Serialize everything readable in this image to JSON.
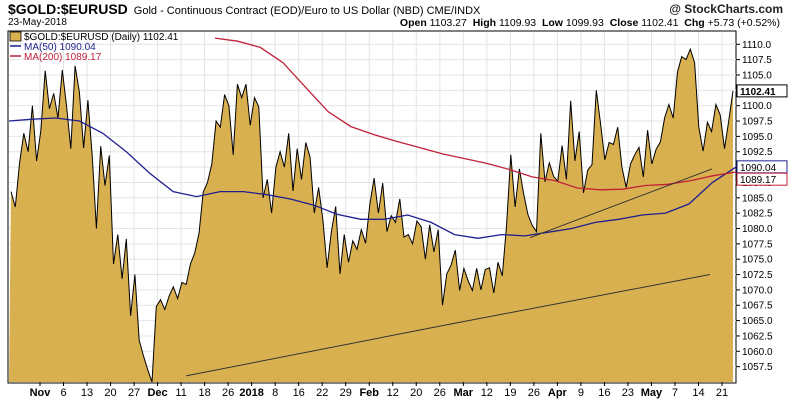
{
  "header": {
    "ticker": "$GOLD:$EURUSD",
    "subtitle": "Gold - Continuous Contract (EOD)/Euro to US Dollar (NBD)  CME/INDX",
    "brand": "@ StockCharts.com",
    "date": "23-May-2018",
    "open_label": "Open",
    "open": "1103.27",
    "high_label": "High",
    "high": "1109.93",
    "low_label": "Low",
    "low": "1099.93",
    "close_label": "Close",
    "close": "1102.41",
    "chg_label": "Chg",
    "chg": "+5.73 (+0.52%)"
  },
  "legend": {
    "main": "$GOLD:$EURUSD (Daily) 1102.41",
    "ma50": "MA(50) 1090.04",
    "ma200": "MA(200) 1089.17"
  },
  "colors": {
    "fill": "#d9b04f",
    "line": "#000000",
    "ma50": "#1f1f8f",
    "ma200": "#c0203a",
    "grid": "#e4e4e4"
  },
  "last_price_tag": "1102.41",
  "ma50_tag": "1090.04",
  "ma200_tag": "1089.17",
  "chart_data": {
    "type": "area",
    "ylim": [
      1055,
      1112
    ],
    "y_ticks": [
      "1110.0",
      "1107.5",
      "1105.0",
      "1102.5",
      "1100.0",
      "1097.5",
      "1095.0",
      "1092.5",
      "1090.0",
      "1087.5",
      "1085.0",
      "1082.5",
      "1080.0",
      "1077.5",
      "1075.0",
      "1072.5",
      "1070.0",
      "1067.5",
      "1065.0",
      "1062.5",
      "1060.0",
      "1057.5"
    ],
    "x_ticks": [
      "Nov",
      "6",
      "13",
      "20",
      "27",
      "Dec",
      "11",
      "18",
      "26",
      "2018",
      "8",
      "16",
      "22",
      "29",
      "Feb",
      "12",
      "20",
      "26",
      "Mar",
      "12",
      "19",
      "26",
      "Apr",
      "9",
      "16",
      "23",
      "May",
      "7",
      "14",
      "21"
    ],
    "x_ticks_bold": [
      "Nov",
      "Dec",
      "2018",
      "Feb",
      "Mar",
      "Apr",
      "May"
    ],
    "series": [
      {
        "name": "$GOLD:$EURUSD",
        "values": [
          1086.0,
          1083.5,
          1090.6,
          1095.5,
          1092.5,
          1100.0,
          1091.0,
          1096.0,
          1105.7,
          1099.5,
          1102.0,
          1098.0,
          1105.8,
          1100.0,
          1093.0,
          1106.5,
          1102.2,
          1093.1,
          1100.9,
          1091.9,
          1080.0,
          1093.4,
          1087.0,
          1091.9,
          1074.2,
          1079.0,
          1071.8,
          1078.3,
          1065.8,
          1072.5,
          1061.8,
          1059.3,
          1057.0,
          1055.0,
          1067.3,
          1068.4,
          1066.8,
          1069.0,
          1070.5,
          1068.6,
          1071.2,
          1070.9,
          1074.2,
          1076.0,
          1079.2,
          1085.9,
          1087.5,
          1090.5,
          1097.5,
          1096.5,
          1101.8,
          1100.0,
          1092.0,
          1103.5,
          1101.3,
          1103.5,
          1096.8,
          1101.3,
          1099.8,
          1085.0,
          1088.0,
          1082.5,
          1090.0,
          1092.5,
          1090.0,
          1095.5,
          1086.1,
          1093.0,
          1088.0,
          1094.0,
          1091.6,
          1082.5,
          1086.7,
          1081.4,
          1073.6,
          1079.5,
          1083.6,
          1072.6,
          1079.0,
          1074.5,
          1078.0,
          1076.6,
          1079.8,
          1077.6,
          1084.0,
          1088.2,
          1082.5,
          1087.4,
          1079.5,
          1082.1,
          1081.0,
          1084.8,
          1078.6,
          1079.0,
          1077.5,
          1081.2,
          1080.3,
          1075.0,
          1080.6,
          1076.2,
          1079.8,
          1067.5,
          1072.6,
          1074.0,
          1076.5,
          1069.9,
          1073.5,
          1071.5,
          1069.9,
          1073.5,
          1070.0,
          1073.3,
          1073.6,
          1069.5,
          1074.5,
          1072.3,
          1080.6,
          1092.0,
          1083.5,
          1089.7,
          1085.6,
          1082.3,
          1080.5,
          1079.5,
          1095.5,
          1087.6,
          1090.7,
          1088.5,
          1087.7,
          1093.5,
          1088.0,
          1100.8,
          1091.0,
          1095.8,
          1085.8,
          1089.5,
          1090.4,
          1102.5,
          1097.0,
          1091.2,
          1094.0,
          1093.7,
          1096.5,
          1090.0,
          1086.7,
          1090.5,
          1092.0,
          1093.2,
          1088.4,
          1096.0,
          1090.5,
          1092.9,
          1094.1,
          1098.0,
          1100.2,
          1098.0,
          1105.5,
          1108.0,
          1107.5,
          1109.2,
          1107.0,
          1096.5,
          1092.6,
          1097.3,
          1095.8,
          1100.2,
          1098.5,
          1093.0,
          1097.5,
          1102.4
        ]
      },
      {
        "name": "MA(50)",
        "values": [
          1097.5,
          1097.8,
          1098.0,
          1097.5,
          1095.5,
          1092.5,
          1089.0,
          1086.0,
          1085.2,
          1086.0,
          1086.0,
          1085.5,
          1084.8,
          1083.8,
          1082.3,
          1081.5,
          1081.5,
          1082.2,
          1081.0,
          1079.0,
          1078.4,
          1079.0,
          1078.8,
          1079.4,
          1080.0,
          1081.0,
          1081.5,
          1082.2,
          1082.5,
          1084.0,
          1087.5,
          1090.0
        ]
      },
      {
        "name": "MA(200)",
        "values": [
          1111.0,
          1110.5,
          1109.5,
          1107.0,
          1103.0,
          1099.0,
          1096.6,
          1095.3,
          1094.2,
          1093.2,
          1092.2,
          1091.4,
          1090.6,
          1089.6,
          1088.4,
          1087.8,
          1086.6,
          1086.3,
          1086.4,
          1087.0,
          1087.2,
          1087.8,
          1088.6,
          1089.2
        ]
      }
    ],
    "trendlines": [
      {
        "from": [
          "Dec 14",
          1056.0
        ],
        "to": [
          "Mar 1",
          1064.2
        ]
      },
      {
        "from": [
          "Mar 1",
          1064.2
        ],
        "to": [
          "May 18",
          1072.5
        ]
      },
      {
        "from": [
          "Mar 29",
          1078.5
        ],
        "to": [
          "May 18",
          1089.7
        ]
      }
    ]
  }
}
